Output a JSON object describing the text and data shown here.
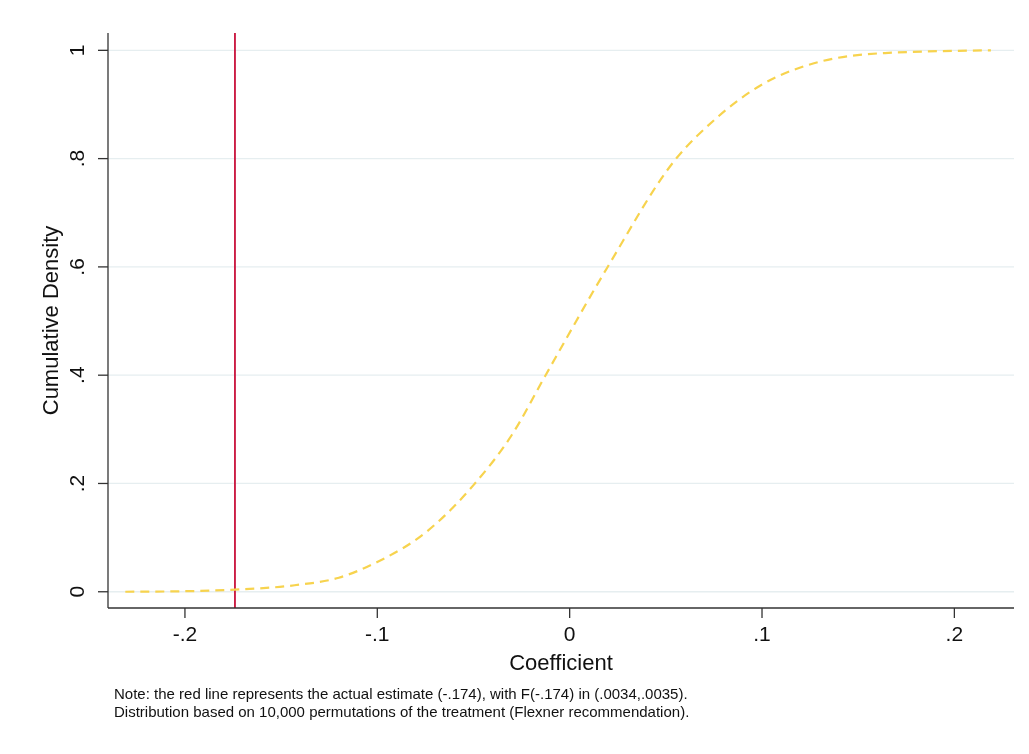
{
  "chart_data": {
    "type": "line",
    "xlabel": "Coefficient",
    "ylabel": "Cumulative Density",
    "xlim": [
      -0.24,
      0.231
    ],
    "ylim": [
      -0.03,
      1.032
    ],
    "xticks": [
      {
        "value": -0.2,
        "label": "-.2"
      },
      {
        "value": -0.1,
        "label": "-.1"
      },
      0,
      {
        "value": 0.1,
        "label": ".1"
      },
      {
        "value": 0.2,
        "label": ".2"
      }
    ],
    "yticks": [
      0,
      {
        "value": 0.2,
        "label": ".2"
      },
      {
        "value": 0.4,
        "label": ".4"
      },
      {
        "value": 0.6,
        "label": ".6"
      },
      {
        "value": 0.8,
        "label": ".8"
      },
      1
    ],
    "grid": "y",
    "line_style": "dashed",
    "marker": "none",
    "series": [
      {
        "color": "#f7d34e",
        "x": [
          -0.231,
          -0.2,
          -0.174,
          -0.143,
          -0.12,
          -0.1,
          -0.074,
          -0.05,
          -0.03,
          -0.0125,
          0.0196,
          0.0556,
          0.0754,
          0.0996,
          0.127,
          0.164,
          0.219
        ],
        "values": [
          0,
          0.001,
          0.004,
          0.012,
          0.026,
          0.055,
          0.112,
          0.197,
          0.29,
          0.4,
          0.599,
          0.801,
          0.872,
          0.936,
          0.976,
          0.995,
          1
        ]
      }
    ],
    "ref_lines": [
      {
        "axis": "x",
        "value": -0.174,
        "color": "#c8103a"
      }
    ],
    "annotations": [
      "Note: the red line represents the actual estimate (-.174), with F(-.174) in (.0034,.0035).",
      "Distribution based on 10,000 permutations of the treatment (Flexner recommendation)."
    ]
  }
}
